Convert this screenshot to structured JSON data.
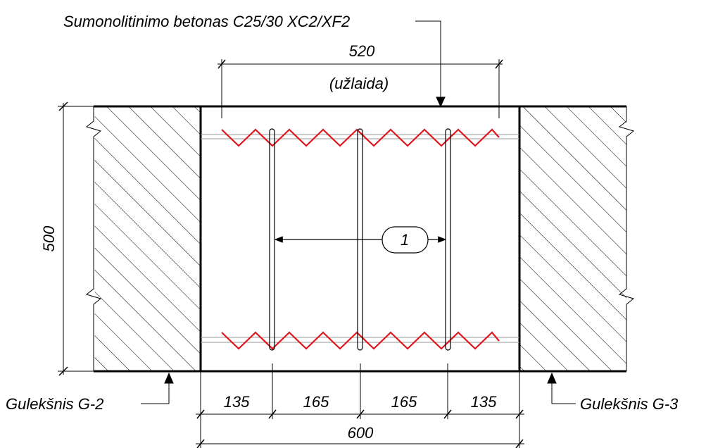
{
  "labels": {
    "concrete": "Sumonolitinimo betonas C25/30 XC2/XF2",
    "overlap_value": "520",
    "overlap_note": "(užlaida)",
    "height": "500",
    "callout": "1",
    "left_beam": "Gulekšnis G-2",
    "right_beam": "Gulekšnis G-3"
  },
  "dimensions": {
    "spacing": [
      "135",
      "165",
      "165",
      "135"
    ],
    "total": "600"
  },
  "colors": {
    "line": "#000000",
    "rebar_zigzag": "#e0141a",
    "hatch": "#000000"
  }
}
